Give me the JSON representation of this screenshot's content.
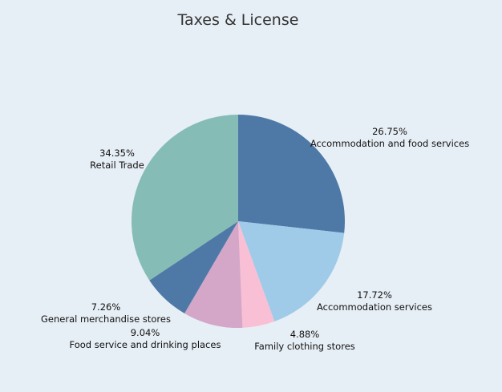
{
  "chart_data": {
    "type": "pie",
    "title": "Taxes & License",
    "start": "top",
    "direction": "clockwise",
    "slices": [
      {
        "label": "Accommodation and food services",
        "value": 26.75,
        "display": "26.75%",
        "color": "#4e79a7"
      },
      {
        "label": "Accommodation services",
        "value": 17.72,
        "display": "17.72%",
        "color": "#a0cbe8"
      },
      {
        "label": "Family clothing stores",
        "value": 4.88,
        "display": "4.88%",
        "color": "#f9c0d5"
      },
      {
        "label": "Food service and drinking places",
        "value": 9.04,
        "display": "9.04%",
        "color": "#d4a6c8"
      },
      {
        "label": "General merchandise stores",
        "value": 7.26,
        "display": "7.26%",
        "color": "#4e79a7"
      },
      {
        "label": "Retail Trade",
        "value": 34.35,
        "display": "34.35%",
        "color": "#86bcb6"
      }
    ]
  }
}
